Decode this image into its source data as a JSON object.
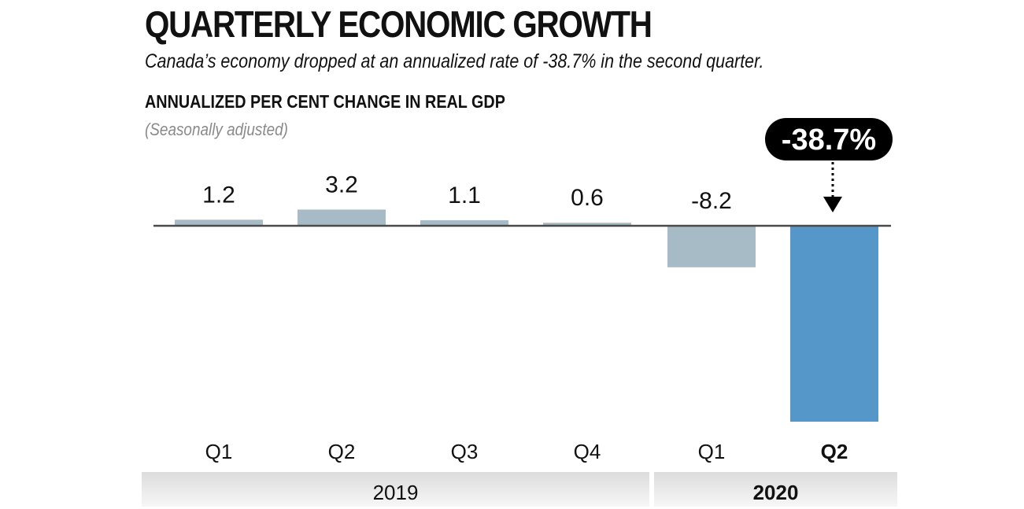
{
  "header": {
    "title": "QUARTERLY ECONOMIC GROWTH",
    "subtitle": "Canada’s economy dropped at an annualized rate of -38.7% in the second quarter.",
    "unit_label": "ANNUALIZED PER CENT CHANGE IN REAL GDP",
    "note": "(Seasonally adjusted)"
  },
  "chart_data": {
    "type": "bar",
    "title": "QUARTERLY ECONOMIC GROWTH",
    "subtitle": "Canada’s economy dropped at an annualized rate of -38.7% in the second quarter.",
    "ylabel": "ANNUALIZED PER CENT CHANGE IN REAL GDP",
    "xlabel": "",
    "categories": [
      "Q1",
      "Q2",
      "Q3",
      "Q4",
      "Q1",
      "Q2"
    ],
    "groups": [
      {
        "label": "2019",
        "categories": [
          0,
          1,
          2,
          3
        ],
        "bold": false
      },
      {
        "label": "2020",
        "categories": [
          4,
          5
        ],
        "bold": true
      }
    ],
    "values": [
      1.2,
      3.2,
      1.1,
      0.6,
      -8.2,
      -38.7
    ],
    "data_labels": [
      "1.2",
      "3.2",
      "1.1",
      "0.6",
      "-8.2",
      ""
    ],
    "highlight_index": 5,
    "callout": "-38.7%",
    "ylim": [
      -40,
      5
    ],
    "grid": false,
    "legend": "none",
    "colors": {
      "default": "#a7bbc7",
      "highlight": "#5497c8",
      "baseline": "#4a4a4a",
      "callout_bg": "#000000"
    }
  }
}
